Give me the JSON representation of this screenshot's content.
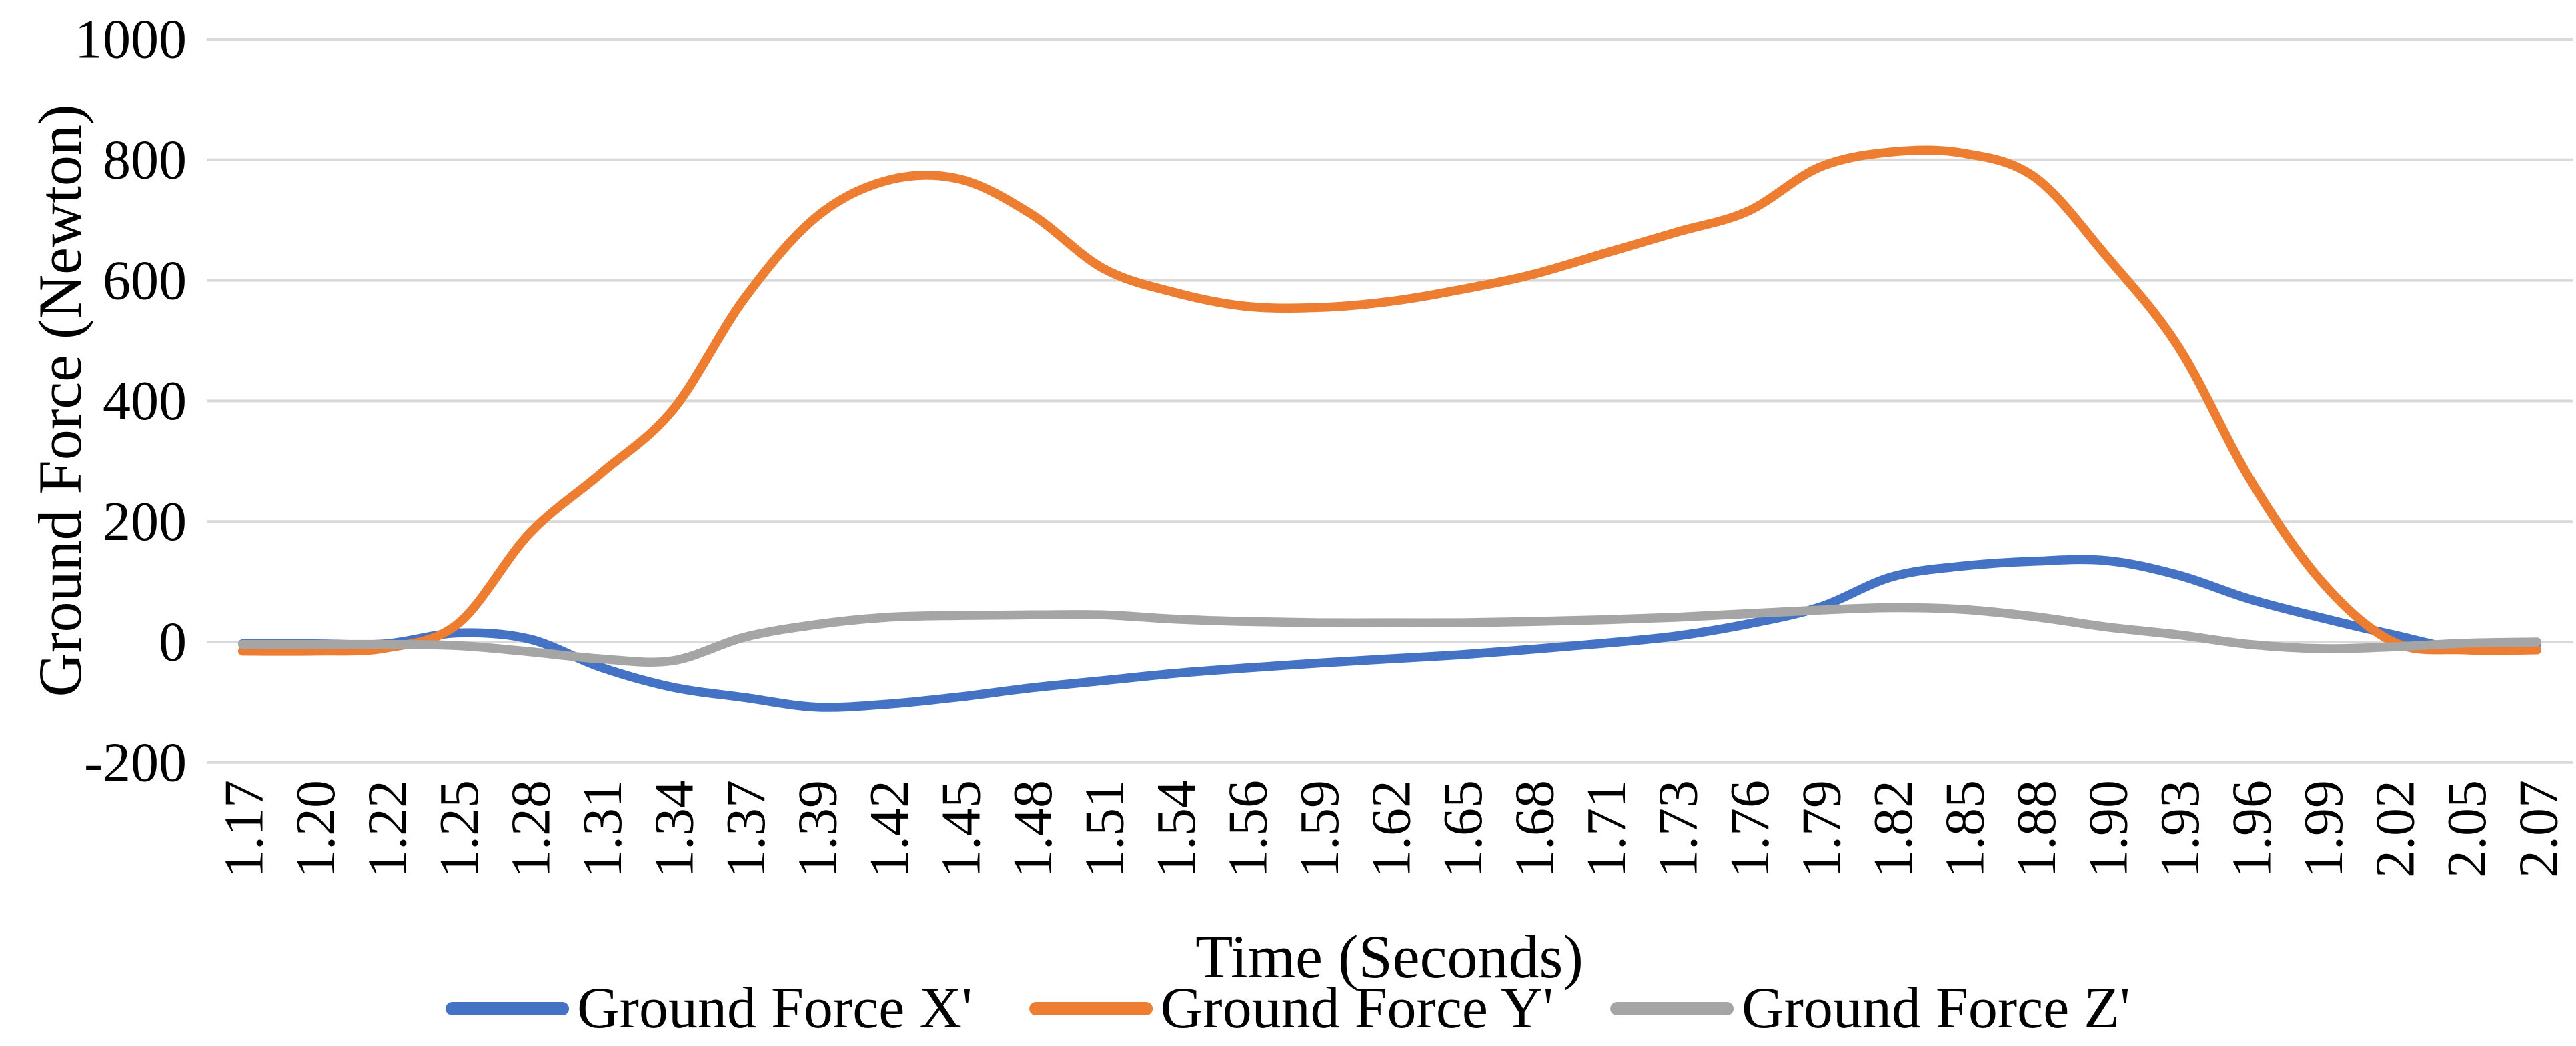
{
  "chart_data": {
    "type": "line",
    "title": "",
    "xlabel": "Time (Seconds)",
    "ylabel": "Ground Force (Newton)",
    "categories": [
      "1.17",
      "1.20",
      "1.22",
      "1.25",
      "1.28",
      "1.31",
      "1.34",
      "1.37",
      "1.39",
      "1.42",
      "1.45",
      "1.48",
      "1.51",
      "1.54",
      "1.56",
      "1.59",
      "1.62",
      "1.65",
      "1.68",
      "1.71",
      "1.73",
      "1.76",
      "1.79",
      "1.82",
      "1.85",
      "1.88",
      "1.90",
      "1.93",
      "1.96",
      "1.99",
      "2.02",
      "2.05",
      "2.07"
    ],
    "ylim": [
      -200,
      1000
    ],
    "ytick_step": 200,
    "ytick_labels": [
      "-200",
      "0",
      "200",
      "400",
      "600",
      "800",
      "1000"
    ],
    "grid": true,
    "smooth": true,
    "legend_position": "bottom",
    "gridline_color": "#D9D9D9",
    "text_color": "#000000",
    "series": [
      {
        "name": "Ground Force X'",
        "color": "#4472C4",
        "values": [
          -3,
          -3,
          -3,
          15,
          5,
          -42,
          -75,
          -92,
          -108,
          -103,
          -91,
          -76,
          -64,
          -52,
          -43,
          -35,
          -28,
          -21,
          -12,
          -2,
          10,
          30,
          58,
          108,
          126,
          134,
          135,
          111,
          71,
          40,
          12,
          -12,
          -3
        ]
      },
      {
        "name": "Ground Force Y'",
        "color": "#ED7D31",
        "values": [
          -15,
          -15,
          -10,
          30,
          180,
          280,
          385,
          570,
          705,
          766,
          768,
          710,
          620,
          580,
          557,
          555,
          565,
          585,
          610,
          645,
          680,
          715,
          788,
          813,
          811,
          771,
          640,
          490,
          270,
          100,
          0,
          -13,
          -13
        ]
      },
      {
        "name": "Ground Force Z'",
        "color": "#A5A5A5",
        "values": [
          -4,
          -4,
          -4,
          -6,
          -16,
          -28,
          -31,
          8,
          29,
          41,
          44,
          45,
          45,
          38,
          34,
          32,
          32,
          32,
          34,
          37,
          41,
          47,
          53,
          57,
          54,
          42,
          25,
          12,
          -4,
          -11,
          -8,
          -2,
          0
        ]
      }
    ]
  }
}
